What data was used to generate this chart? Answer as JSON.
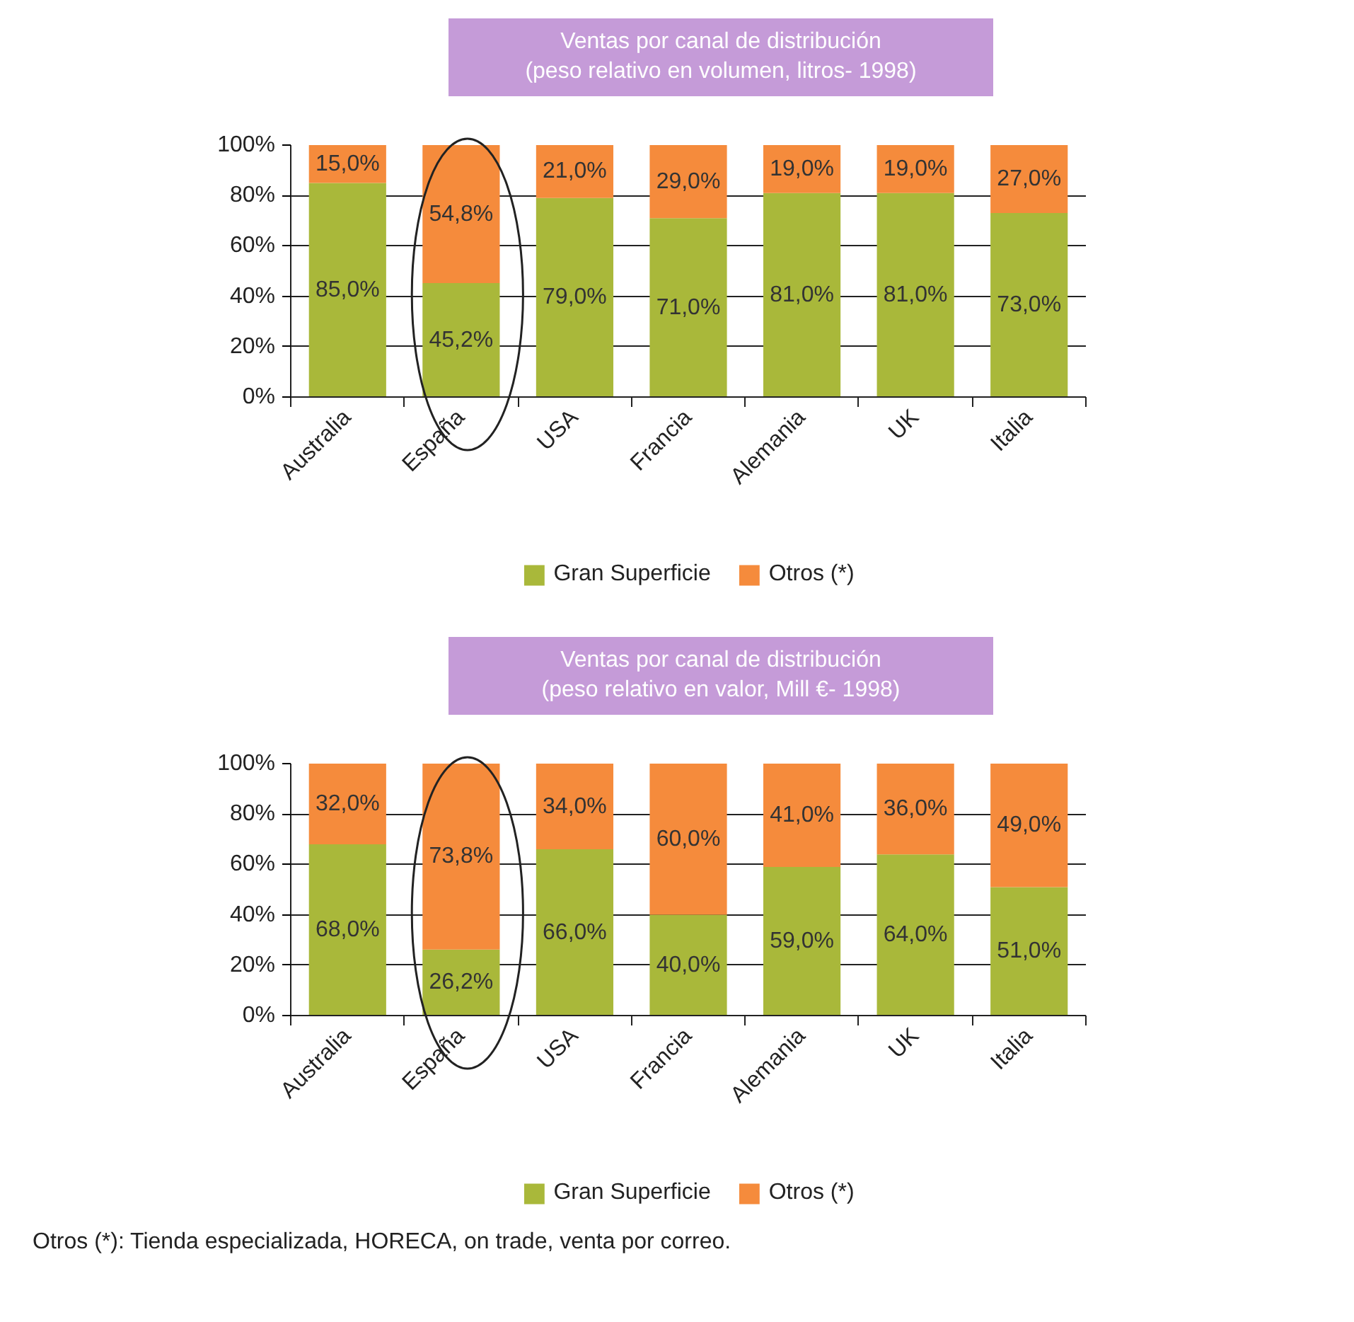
{
  "chart_data": [
    {
      "type": "bar",
      "stacked": true,
      "title": "Ventas por canal de distribución",
      "subtitle": "(peso relativo en volumen, litros- 1998)",
      "categories": [
        "Australia",
        "España",
        "USA",
        "Francia",
        "Alemania",
        "UK",
        "Italia"
      ],
      "series": [
        {
          "name": "Gran Superficie",
          "color": "#a9b83a",
          "values": [
            85.0,
            45.2,
            79.0,
            71.0,
            81.0,
            81.0,
            73.0
          ],
          "value_labels": [
            "85,0%",
            "45,2%",
            "79,0%",
            "71,0%",
            "81,0%",
            "81,0%",
            "73,0%"
          ]
        },
        {
          "name": "Otros (*)",
          "color": "#f58b3c",
          "values": [
            15.0,
            54.8,
            21.0,
            29.0,
            19.0,
            19.0,
            27.0
          ],
          "value_labels": [
            "15,0%",
            "54,8%",
            "21,0%",
            "29,0%",
            "19,0%",
            "19,0%",
            "27,0%"
          ]
        }
      ],
      "ylim": [
        0,
        100
      ],
      "yticks": [
        {
          "value": 0,
          "label": "0%"
        },
        {
          "value": 20,
          "label": "20%"
        },
        {
          "value": 40,
          "label": "40%"
        },
        {
          "value": 60,
          "label": "60%"
        },
        {
          "value": 80,
          "label": "80%"
        },
        {
          "value": 100,
          "label": "100%"
        }
      ],
      "grid": "y",
      "legend": "bottom"
    },
    {
      "type": "bar",
      "stacked": true,
      "title": "Ventas por canal de distribución",
      "subtitle": "(peso relativo en valor, Mill €- 1998)",
      "categories": [
        "Australia",
        "España",
        "USA",
        "Francia",
        "Alemania",
        "UK",
        "Italia"
      ],
      "series": [
        {
          "name": "Gran Superficie",
          "color": "#a9b83a",
          "values": [
            68.0,
            26.2,
            66.0,
            40.0,
            59.0,
            64.0,
            51.0
          ],
          "value_labels": [
            "68,0%",
            "26,2%",
            "66,0%",
            "40,0%",
            "59,0%",
            "64,0%",
            "51,0%"
          ]
        },
        {
          "name": "Otros (*)",
          "color": "#f58b3c",
          "values": [
            32.0,
            73.8,
            34.0,
            60.0,
            41.0,
            36.0,
            49.0
          ],
          "value_labels": [
            "32,0%",
            "73,8%",
            "34,0%",
            "60,0%",
            "41,0%",
            "36,0%",
            "49,0%"
          ]
        }
      ],
      "ylim": [
        0,
        100
      ],
      "yticks": [
        {
          "value": 0,
          "label": "0%"
        },
        {
          "value": 20,
          "label": "20%"
        },
        {
          "value": 40,
          "label": "40%"
        },
        {
          "value": 60,
          "label": "60%"
        },
        {
          "value": 80,
          "label": "80%"
        },
        {
          "value": 100,
          "label": "100%"
        }
      ],
      "grid": "y",
      "legend": "bottom",
      "annotations": [
        "Otros (*): Tienda especializada, HORECA, on trade, venta por correo."
      ]
    }
  ]
}
